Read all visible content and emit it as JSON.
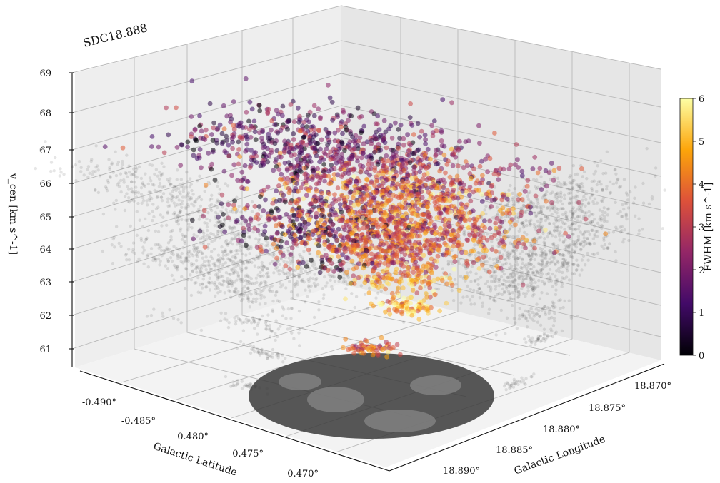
{
  "chart_data": {
    "type": "scatter",
    "projection": "3d",
    "title": "SDC18.888",
    "xlabel": "Galactic Latitude",
    "ylabel": "Galactic Longitude",
    "zlabel": "v_cen [km s^-1]",
    "x_ticks": [
      "-0.490°",
      "-0.485°",
      "-0.480°",
      "-0.475°",
      "-0.470°"
    ],
    "y_ticks": [
      "18.870°",
      "18.875°",
      "18.880°",
      "18.885°",
      "18.890°"
    ],
    "z_ticks": [
      "69",
      "68",
      "67",
      "66",
      "65",
      "64",
      "63",
      "62",
      "61"
    ],
    "xlim": [
      -0.492,
      -0.468
    ],
    "ylim": [
      18.866,
      18.892
    ],
    "zlim": [
      60.5,
      69.3
    ],
    "grid": true,
    "colorbar": {
      "label": "FWHM [km s^-1]",
      "ticks": [
        "6",
        "5",
        "4",
        "3",
        "2",
        "1",
        "0"
      ],
      "range": [
        0,
        6
      ],
      "colormap": "inferno",
      "stops": [
        "#000004",
        "#420a68",
        "#932667",
        "#dd513a",
        "#fca50a",
        "#fcffa4"
      ]
    },
    "series": [
      {
        "clusters": [
          {
            "x": -0.486,
            "y": 18.878,
            "z": 66.8,
            "spread": 2.0,
            "fwhm": 1.6,
            "count": 500
          },
          {
            "x": -0.48,
            "y": 18.876,
            "z": 66.0,
            "spread": 2.2,
            "fwhm": 2.6,
            "count": 600
          },
          {
            "x": -0.476,
            "y": 18.88,
            "z": 65.3,
            "spread": 2.0,
            "fwhm": 3.4,
            "count": 500
          },
          {
            "x": -0.482,
            "y": 18.874,
            "z": 64.9,
            "spread": 1.8,
            "fwhm": 4.6,
            "count": 300
          },
          {
            "x": -0.479,
            "y": 18.879,
            "z": 64.2,
            "spread": 1.4,
            "fwhm": 3.6,
            "count": 300
          },
          {
            "x": -0.484,
            "y": 18.88,
            "z": 64.6,
            "spread": 1.4,
            "fwhm": 1.2,
            "count": 200
          },
          {
            "x": -0.478,
            "y": 18.878,
            "z": 63.2,
            "spread": 0.8,
            "fwhm": 4.8,
            "count": 120
          },
          {
            "x": -0.478,
            "y": 18.878,
            "z": 62.4,
            "spread": 0.5,
            "fwhm": 5.0,
            "count": 80
          },
          {
            "x": -0.479,
            "y": 18.88,
            "z": 61.2,
            "spread": 0.4,
            "fwhm": 3.8,
            "count": 60
          },
          {
            "x": -0.485,
            "y": 18.876,
            "z": 62.8,
            "spread": 0.6,
            "fwhm": 0.3,
            "count": 20
          }
        ]
      }
    ]
  }
}
